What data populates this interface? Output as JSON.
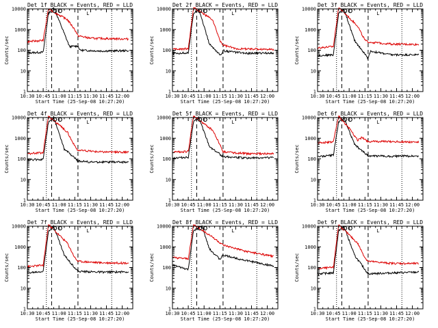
{
  "chart_data": {
    "type": "line",
    "time_range": "10:30-12:10",
    "xticks": [
      "10:30",
      "10:45",
      "11:00",
      "11:15",
      "11:30",
      "11:45",
      "12:00"
    ],
    "xtick_minutes": [
      630,
      645,
      660,
      675,
      690,
      705,
      720
    ],
    "xlim_minutes": [
      630,
      730
    ],
    "yscale": "log",
    "ylim": [
      1,
      10000
    ],
    "yticks": [
      "1",
      "10",
      "100",
      "1000",
      "10000"
    ],
    "ylabel": "Counts/sec",
    "xlabel": "Start Time (25-Sep-08 10:27:20)",
    "series_legend": {
      "black": "Events",
      "red": "LLD"
    },
    "series_colors": {
      "events": "#000000",
      "lld": "#dd0000"
    },
    "dotted_lines_minutes": [
      648,
      710
    ],
    "dashed_lines_minutes": [
      653,
      678
    ],
    "panels": [
      {
        "title": "Det 1f BLACK = Events, RED = LLD",
        "marker": "L",
        "events": [
          [
            630,
            75
          ],
          [
            645,
            80
          ],
          [
            650,
            6000
          ],
          [
            655,
            12000
          ],
          [
            670,
            150
          ],
          [
            678,
            160
          ],
          [
            680,
            100
          ],
          [
            700,
            92
          ],
          [
            725,
            95
          ]
        ],
        "lld": [
          [
            630,
            260
          ],
          [
            645,
            300
          ],
          [
            650,
            10000
          ],
          [
            668,
            3000
          ],
          [
            675,
            1000
          ],
          [
            678,
            500
          ],
          [
            690,
            380
          ],
          [
            725,
            350
          ]
        ]
      },
      {
        "title": "Det 2f BLACK = Events, RED = LLD",
        "marker": "L",
        "events": [
          [
            630,
            70
          ],
          [
            645,
            75
          ],
          [
            650,
            6000
          ],
          [
            655,
            10000
          ],
          [
            665,
            200
          ],
          [
            676,
            55
          ],
          [
            678,
            95
          ],
          [
            700,
            70
          ],
          [
            725,
            75
          ]
        ],
        "lld": [
          [
            630,
            110
          ],
          [
            645,
            120
          ],
          [
            650,
            12000
          ],
          [
            668,
            3000
          ],
          [
            675,
            300
          ],
          [
            678,
            180
          ],
          [
            690,
            120
          ],
          [
            725,
            110
          ]
        ]
      },
      {
        "title": "Det 3f BLACK = Events, RED = LLD",
        "marker": "L",
        "events": [
          [
            630,
            55
          ],
          [
            645,
            60
          ],
          [
            650,
            6000
          ],
          [
            655,
            10000
          ],
          [
            665,
            300
          ],
          [
            678,
            40
          ],
          [
            680,
            90
          ],
          [
            700,
            60
          ],
          [
            725,
            60
          ]
        ],
        "lld": [
          [
            630,
            130
          ],
          [
            645,
            150
          ],
          [
            650,
            12000
          ],
          [
            668,
            1500
          ],
          [
            675,
            300
          ],
          [
            678,
            250
          ],
          [
            700,
            200
          ],
          [
            725,
            190
          ]
        ]
      },
      {
        "title": "Det 4f BLACK = Events, RED = LLD",
        "marker": "L",
        "events": [
          [
            630,
            90
          ],
          [
            645,
            95
          ],
          [
            650,
            6000
          ],
          [
            655,
            10000
          ],
          [
            665,
            300
          ],
          [
            678,
            80
          ],
          [
            690,
            70
          ],
          [
            725,
            70
          ]
        ],
        "lld": [
          [
            630,
            180
          ],
          [
            645,
            200
          ],
          [
            650,
            12000
          ],
          [
            668,
            2000
          ],
          [
            675,
            400
          ],
          [
            678,
            260
          ],
          [
            700,
            220
          ],
          [
            725,
            210
          ]
        ]
      },
      {
        "title": "Det 5f BLACK = Events, RED = LLD",
        "marker": "L",
        "events": [
          [
            630,
            110
          ],
          [
            645,
            120
          ],
          [
            650,
            6000
          ],
          [
            655,
            10000
          ],
          [
            665,
            400
          ],
          [
            678,
            130
          ],
          [
            700,
            110
          ],
          [
            725,
            115
          ]
        ],
        "lld": [
          [
            630,
            210
          ],
          [
            645,
            230
          ],
          [
            650,
            12000
          ],
          [
            668,
            2500
          ],
          [
            675,
            500
          ],
          [
            678,
            220
          ],
          [
            700,
            180
          ],
          [
            725,
            175
          ]
        ]
      },
      {
        "title": "Det 6f BLACK = Events, RED = LLD",
        "marker": "L",
        "events": [
          [
            630,
            130
          ],
          [
            645,
            150
          ],
          [
            650,
            6000
          ],
          [
            655,
            10000
          ],
          [
            665,
            500
          ],
          [
            678,
            140
          ],
          [
            700,
            135
          ],
          [
            725,
            140
          ]
        ],
        "lld": [
          [
            630,
            600
          ],
          [
            645,
            650
          ],
          [
            650,
            12000
          ],
          [
            660,
            3000
          ],
          [
            668,
            800
          ],
          [
            672,
            1100
          ],
          [
            678,
            700
          ],
          [
            700,
            690
          ],
          [
            725,
            650
          ]
        ]
      },
      {
        "title": "Det 7f BLACK = Events, RED = LLD",
        "marker": "L",
        "events": [
          [
            630,
            55
          ],
          [
            645,
            65
          ],
          [
            650,
            6000
          ],
          [
            655,
            10000
          ],
          [
            665,
            400
          ],
          [
            678,
            65
          ],
          [
            700,
            60
          ],
          [
            725,
            62
          ]
        ],
        "lld": [
          [
            630,
            110
          ],
          [
            645,
            130
          ],
          [
            650,
            12000
          ],
          [
            668,
            1500
          ],
          [
            675,
            300
          ],
          [
            678,
            200
          ],
          [
            700,
            170
          ],
          [
            725,
            165
          ]
        ]
      },
      {
        "title": "Det 8f BLACK = Events, RED = LLD",
        "marker": "L",
        "events": [
          [
            630,
            130
          ],
          [
            645,
            80
          ],
          [
            650,
            6000
          ],
          [
            658,
            10000
          ],
          [
            665,
            800
          ],
          [
            675,
            250
          ],
          [
            678,
            400
          ],
          [
            700,
            220
          ],
          [
            725,
            120
          ]
        ],
        "lld": [
          [
            630,
            300
          ],
          [
            645,
            260
          ],
          [
            650,
            12000
          ],
          [
            668,
            3000
          ],
          [
            678,
            1200
          ],
          [
            700,
            600
          ],
          [
            725,
            350
          ]
        ]
      },
      {
        "title": "Det 9f BLACK = Events, RED = LLD",
        "marker": "L",
        "events": [
          [
            630,
            50
          ],
          [
            645,
            55
          ],
          [
            650,
            6000
          ],
          [
            655,
            10000
          ],
          [
            665,
            400
          ],
          [
            678,
            50
          ],
          [
            700,
            55
          ],
          [
            725,
            60
          ]
        ],
        "lld": [
          [
            630,
            90
          ],
          [
            645,
            100
          ],
          [
            650,
            12000
          ],
          [
            668,
            1500
          ],
          [
            675,
            300
          ],
          [
            678,
            200
          ],
          [
            700,
            160
          ],
          [
            725,
            155
          ]
        ]
      }
    ]
  }
}
